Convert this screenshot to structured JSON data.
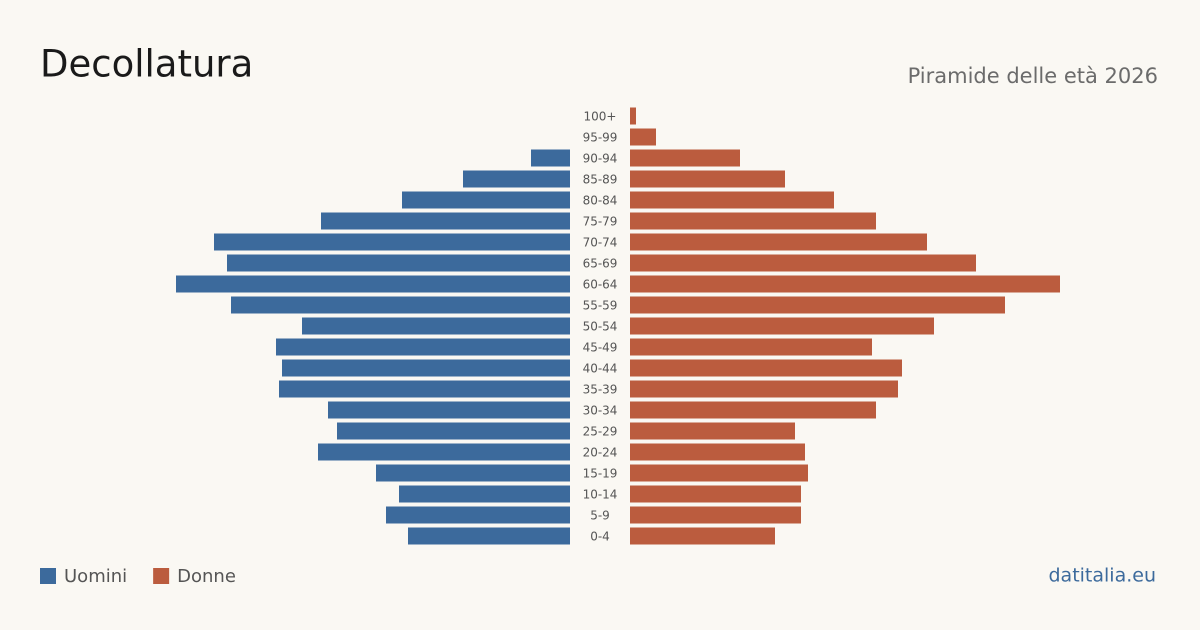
{
  "chart_data": {
    "type": "pyramid",
    "title": "Decollatura",
    "subtitle": "Piramide delle età 2026",
    "source": "datitalia.eu",
    "categories": [
      "100+",
      "95-99",
      "90-94",
      "85-89",
      "80-84",
      "75-79",
      "70-74",
      "65-69",
      "60-64",
      "55-59",
      "50-54",
      "45-49",
      "40-44",
      "35-39",
      "30-34",
      "25-29",
      "20-24",
      "15-19",
      "10-14",
      "5-9",
      "0-4"
    ],
    "series": [
      {
        "name": "Uomini",
        "color": "#3c6a9c",
        "side": "left",
        "values": [
          0,
          0,
          39,
          107,
          168,
          249,
          356,
          343,
          394,
          339,
          268,
          294,
          288,
          291,
          242,
          233,
          252,
          194,
          171,
          184,
          162
        ]
      },
      {
        "name": "Donne",
        "color": "#bb5c3e",
        "side": "right",
        "values": [
          6,
          26,
          110,
          155,
          204,
          246,
          297,
          346,
          430,
          375,
          304,
          242,
          272,
          268,
          246,
          165,
          175,
          178,
          171,
          171,
          145
        ]
      }
    ],
    "xlim": [
      0,
      430
    ]
  }
}
